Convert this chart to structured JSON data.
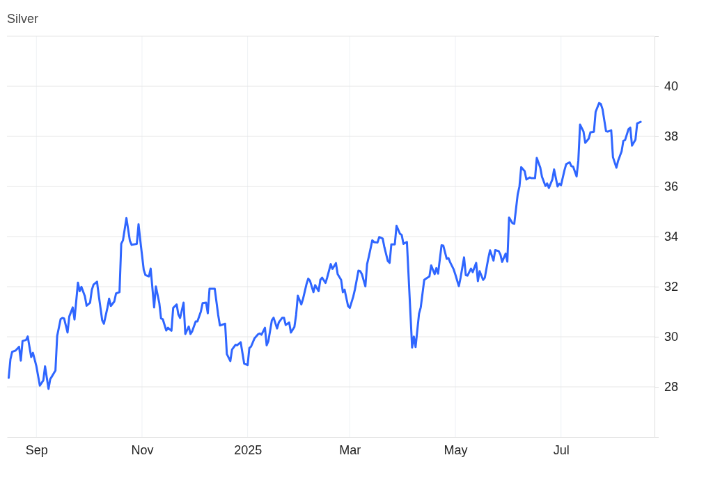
{
  "chart_data": {
    "type": "line",
    "title": "Silver",
    "x": [
      "2024-08-16",
      "2024-08-17",
      "2024-08-18",
      "2024-08-20",
      "2024-08-22",
      "2024-08-23",
      "2024-08-24",
      "2024-08-26",
      "2024-08-27",
      "2024-08-29",
      "2024-08-30",
      "2024-09-01",
      "2024-09-03",
      "2024-09-05",
      "2024-09-06",
      "2024-09-08",
      "2024-09-09",
      "2024-09-10",
      "2024-09-12",
      "2024-09-13",
      "2024-09-15",
      "2024-09-16",
      "2024-09-17",
      "2024-09-19",
      "2024-09-20",
      "2024-09-22",
      "2024-09-23",
      "2024-09-25",
      "2024-09-26",
      "2024-09-27",
      "2024-09-29",
      "2024-09-30",
      "2024-10-02",
      "2024-10-03",
      "2024-10-04",
      "2024-10-06",
      "2024-10-07",
      "2024-10-09",
      "2024-10-10",
      "2024-10-12",
      "2024-10-13",
      "2024-10-14",
      "2024-10-16",
      "2024-10-17",
      "2024-10-19",
      "2024-10-20",
      "2024-10-21",
      "2024-10-23",
      "2024-10-25",
      "2024-10-26",
      "2024-10-29",
      "2024-10-30",
      "2024-10-31",
      "2024-11-02",
      "2024-11-03",
      "2024-11-05",
      "2024-11-06",
      "2024-11-08",
      "2024-11-09",
      "2024-11-11",
      "2024-11-12",
      "2024-11-13",
      "2024-11-15",
      "2024-11-16",
      "2024-11-18",
      "2024-11-19",
      "2024-11-21",
      "2024-11-22",
      "2024-11-23",
      "2024-11-25",
      "2024-11-26",
      "2024-11-28",
      "2024-11-29",
      "2024-11-30",
      "2024-12-02",
      "2024-12-03",
      "2024-12-05",
      "2024-12-06",
      "2024-12-08",
      "2024-12-09",
      "2024-12-10",
      "2024-12-13",
      "2024-12-15",
      "2024-12-16",
      "2024-12-19",
      "2024-12-20",
      "2024-12-22",
      "2024-12-23",
      "2024-12-25",
      "2024-12-26",
      "2024-12-28",
      "2024-12-30",
      "2025-01-01",
      "2025-01-02",
      "2025-01-03",
      "2025-01-05",
      "2025-01-07",
      "2025-01-08",
      "2025-01-09",
      "2025-01-11",
      "2025-01-12",
      "2025-01-13",
      "2025-01-15",
      "2025-01-16",
      "2025-01-18",
      "2025-01-19",
      "2025-01-21",
      "2025-01-22",
      "2025-01-23",
      "2025-01-25",
      "2025-01-26",
      "2025-01-28",
      "2025-01-29",
      "2025-01-30",
      "2025-02-01",
      "2025-02-02",
      "2025-02-04",
      "2025-02-05",
      "2025-02-06",
      "2025-02-08",
      "2025-02-09",
      "2025-02-11",
      "2025-02-12",
      "2025-02-13",
      "2025-02-15",
      "2025-02-16",
      "2025-02-18",
      "2025-02-19",
      "2025-02-21",
      "2025-02-22",
      "2025-02-24",
      "2025-02-25",
      "2025-02-26",
      "2025-02-28",
      "2025-03-01",
      "2025-03-03",
      "2025-03-04",
      "2025-03-06",
      "2025-03-07",
      "2025-03-08",
      "2025-03-10",
      "2025-03-11",
      "2025-03-12",
      "2025-03-14",
      "2025-03-15",
      "2025-03-17",
      "2025-03-18",
      "2025-03-20",
      "2025-03-21",
      "2025-03-23",
      "2025-03-24",
      "2025-03-25",
      "2025-03-27",
      "2025-03-28",
      "2025-03-30",
      "2025-03-31",
      "2025-04-01",
      "2025-04-03",
      "2025-04-06",
      "2025-04-07",
      "2025-04-08",
      "2025-04-10",
      "2025-04-11",
      "2025-04-13",
      "2025-04-14",
      "2025-04-16",
      "2025-04-17",
      "2025-04-19",
      "2025-04-20",
      "2025-04-21",
      "2025-04-23",
      "2025-04-24",
      "2025-04-26",
      "2025-04-27",
      "2025-04-28",
      "2025-04-30",
      "2025-05-01",
      "2025-05-03",
      "2025-05-04",
      "2025-05-06",
      "2025-05-07",
      "2025-05-08",
      "2025-05-10",
      "2025-05-11",
      "2025-05-13",
      "2025-05-14",
      "2025-05-15",
      "2025-05-17",
      "2025-05-18",
      "2025-05-20",
      "2025-05-21",
      "2025-05-23",
      "2025-05-24",
      "2025-05-26",
      "2025-05-27",
      "2025-05-28",
      "2025-05-30",
      "2025-05-31",
      "2025-06-01",
      "2025-06-03",
      "2025-06-04",
      "2025-06-06",
      "2025-06-07",
      "2025-06-08",
      "2025-06-10",
      "2025-06-11",
      "2025-06-13",
      "2025-06-14",
      "2025-06-16",
      "2025-06-17",
      "2025-06-19",
      "2025-06-20",
      "2025-06-22",
      "2025-06-23",
      "2025-06-24",
      "2025-06-26",
      "2025-06-27",
      "2025-06-29",
      "2025-06-30",
      "2025-07-01",
      "2025-07-03",
      "2025-07-04",
      "2025-07-06",
      "2025-07-07",
      "2025-07-08",
      "2025-07-10",
      "2025-07-11",
      "2025-07-12",
      "2025-07-14",
      "2025-07-15",
      "2025-07-17",
      "2025-07-18",
      "2025-07-20",
      "2025-07-21",
      "2025-07-23",
      "2025-07-24",
      "2025-07-25",
      "2025-07-27",
      "2025-07-28",
      "2025-07-30",
      "2025-07-31",
      "2025-08-02",
      "2025-08-03",
      "2025-08-05",
      "2025-08-06",
      "2025-08-07",
      "2025-08-09",
      "2025-08-10",
      "2025-08-11",
      "2025-08-13",
      "2025-08-14",
      "2025-08-16"
    ],
    "series": [
      {
        "color": "#2f66ff",
        "values": [
          28.36,
          29.1,
          29.4,
          29.45,
          29.6,
          29.05,
          29.83,
          29.87,
          30.01,
          29.19,
          29.36,
          28.82,
          28.05,
          28.26,
          28.82,
          27.92,
          28.31,
          28.42,
          28.65,
          30.03,
          30.71,
          30.75,
          30.73,
          30.17,
          30.81,
          31.17,
          30.69,
          32.16,
          31.82,
          31.99,
          31.62,
          31.24,
          31.36,
          31.87,
          32.08,
          32.2,
          31.66,
          30.66,
          30.52,
          31.15,
          31.52,
          31.23,
          31.41,
          31.73,
          31.78,
          33.71,
          33.85,
          34.74,
          33.83,
          33.67,
          33.71,
          34.49,
          33.85,
          32.67,
          32.46,
          32.41,
          32.72,
          31.17,
          32.01,
          31.34,
          30.73,
          30.7,
          30.25,
          30.36,
          30.24,
          31.15,
          31.29,
          30.89,
          30.75,
          31.36,
          30.11,
          30.41,
          30.11,
          30.22,
          30.61,
          30.61,
          31.01,
          31.34,
          31.36,
          30.94,
          31.92,
          31.92,
          30.87,
          30.45,
          30.52,
          29.31,
          29.03,
          29.49,
          29.68,
          29.66,
          29.78,
          28.93,
          28.87,
          29.55,
          29.61,
          29.94,
          30.1,
          30.13,
          30.08,
          30.36,
          29.66,
          29.83,
          30.66,
          30.76,
          30.33,
          30.57,
          30.76,
          30.76,
          30.47,
          30.57,
          30.17,
          30.39,
          30.87,
          31.64,
          31.29,
          31.51,
          32.1,
          32.32,
          32.24,
          31.78,
          32.06,
          31.82,
          32.27,
          32.36,
          32.15,
          32.38,
          32.9,
          32.71,
          32.94,
          32.5,
          32.27,
          31.78,
          31.88,
          31.23,
          31.15,
          31.6,
          31.9,
          32.64,
          32.62,
          32.5,
          32.01,
          32.9,
          33.2,
          33.85,
          33.78,
          33.76,
          33.98,
          33.92,
          33.57,
          33.02,
          32.95,
          33.69,
          33.69,
          34.43,
          34.11,
          34.06,
          33.71,
          33.78,
          29.57,
          30.01,
          29.59,
          30.92,
          31.18,
          32.27,
          32.32,
          32.41,
          32.85,
          32.5,
          32.74,
          32.52,
          33.65,
          33.64,
          33.11,
          33.14,
          32.97,
          32.69,
          32.48,
          32.02,
          32.36,
          33.17,
          32.46,
          32.44,
          32.72,
          32.58,
          32.95,
          32.22,
          32.62,
          32.27,
          32.36,
          33.13,
          33.45,
          33.04,
          33.46,
          33.42,
          33.28,
          32.99,
          33.32,
          33.0,
          34.76,
          34.53,
          34.51,
          35.69,
          36.0,
          36.77,
          36.61,
          36.28,
          36.36,
          36.33,
          36.33,
          37.14,
          36.76,
          36.39,
          36.02,
          36.12,
          35.94,
          36.28,
          36.68,
          36.0,
          36.11,
          36.05,
          36.65,
          36.89,
          36.96,
          36.81,
          36.79,
          36.4,
          37.03,
          38.47,
          38.19,
          37.74,
          37.91,
          38.16,
          38.19,
          38.98,
          39.33,
          39.29,
          39.08,
          38.21,
          38.19,
          38.24,
          37.17,
          36.75,
          37.03,
          37.4,
          37.82,
          37.85,
          38.29,
          38.35,
          37.63,
          37.87,
          38.52,
          38.58
        ]
      }
    ],
    "xlim": [
      "2024-08-15",
      "2025-08-24"
    ],
    "xticks": [
      {
        "value": "2024-09-01",
        "label": "Sep"
      },
      {
        "value": "2024-11-01",
        "label": "Nov"
      },
      {
        "value": "2025-01-01",
        "label": "2025"
      },
      {
        "value": "2025-03-01",
        "label": "Mar"
      },
      {
        "value": "2025-05-01",
        "label": "May"
      },
      {
        "value": "2025-07-01",
        "label": "Jul"
      }
    ],
    "ylim": [
      26,
      42
    ],
    "yticks": [
      28,
      30,
      32,
      34,
      36,
      38,
      40
    ],
    "grid": true,
    "line_style": "solid",
    "marker": "none"
  }
}
